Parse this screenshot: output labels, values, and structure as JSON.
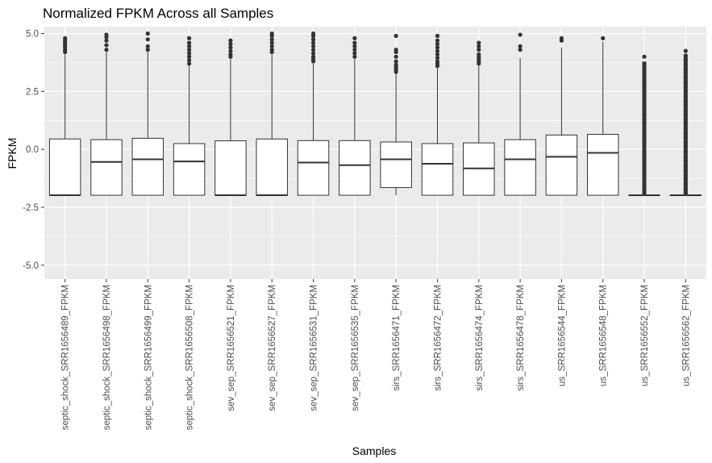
{
  "chart_data": {
    "type": "boxplot",
    "title": "Normalized FPKM Across all Samples",
    "xlabel": "Samples",
    "ylabel": "FPKM",
    "ylim": [
      -5.6,
      5.3
    ],
    "yticks": [
      -5.0,
      -2.5,
      0.0,
      2.5,
      5.0
    ],
    "ytick_labels": [
      "-5.0",
      "-2.5",
      "0.0",
      "2.5",
      "5.0"
    ],
    "grid": true,
    "legend": "none",
    "colors": {
      "panel": "#ebebeb",
      "grid": "#ffffff",
      "box_fill": "#ffffff",
      "box_stroke": "#333333",
      "outlier": "#333333"
    },
    "categories": [
      "septic_shock_SRR1656489_FPKM",
      "septic_shock_SRR1656498_FPKM",
      "septic_shock_SRR1656499_FPKM",
      "septic_shock_SRR1656508_FPKM",
      "sev_sep_SRR1656521_FPKM",
      "sev_sep_SRR1656527_FPKM",
      "sev_sep_SRR1656531_FPKM",
      "sev_sep_SRR1656535_FPKM",
      "sirs_SRR1656471_FPKM",
      "sirs_SRR1656472_FPKM",
      "sirs_SRR1656474_FPKM",
      "sirs_SRR1656478_FPKM",
      "us_SRR1656544_FPKM",
      "us_SRR1656548_FPKM",
      "us_SRR1656552_FPKM",
      "us_SRR1656562_FPKM"
    ],
    "boxes": [
      {
        "q1": -1.98,
        "median": -1.98,
        "q3": 0.45,
        "whisker_low": -1.98,
        "whisker_high": 4.1,
        "outliers": [
          4.2,
          4.3,
          4.4,
          4.5,
          4.6,
          4.7,
          4.8
        ]
      },
      {
        "q1": -1.98,
        "median": -0.54,
        "q3": 0.42,
        "whisker_low": -1.98,
        "whisker_high": 4.2,
        "outliers": [
          4.3,
          4.5,
          4.7,
          4.85,
          4.95
        ]
      },
      {
        "q1": -1.98,
        "median": -0.43,
        "q3": 0.48,
        "whisker_low": -1.98,
        "whisker_high": 4.2,
        "outliers": [
          4.3,
          4.45,
          4.75,
          5.0
        ]
      },
      {
        "q1": -1.98,
        "median": -0.52,
        "q3": 0.25,
        "whisker_low": -1.98,
        "whisker_high": 3.6,
        "outliers": [
          3.7,
          3.85,
          4.0,
          4.15,
          4.3,
          4.45,
          4.6,
          4.8
        ]
      },
      {
        "q1": -1.98,
        "median": -1.98,
        "q3": 0.37,
        "whisker_low": -1.98,
        "whisker_high": 3.9,
        "outliers": [
          4.0,
          4.1,
          4.25,
          4.4,
          4.55,
          4.7
        ]
      },
      {
        "q1": -1.98,
        "median": -1.98,
        "q3": 0.45,
        "whisker_low": -1.98,
        "whisker_high": 4.1,
        "outliers": [
          4.2,
          4.3,
          4.45,
          4.6,
          4.75,
          4.9,
          5.0
        ]
      },
      {
        "q1": -1.98,
        "median": -0.57,
        "q3": 0.38,
        "whisker_low": -1.98,
        "whisker_high": 3.7,
        "outliers": [
          3.8,
          3.9,
          4.0,
          4.15,
          4.3,
          4.45,
          4.6,
          4.75,
          4.9,
          5.0
        ]
      },
      {
        "q1": -1.98,
        "median": -0.68,
        "q3": 0.38,
        "whisker_low": -1.98,
        "whisker_high": 3.9,
        "outliers": [
          4.0,
          4.15,
          4.3,
          4.45,
          4.6,
          4.8
        ]
      },
      {
        "q1": -1.65,
        "median": -0.43,
        "q3": 0.32,
        "whisker_low": -1.98,
        "whisker_high": 3.3,
        "outliers": [
          3.35,
          3.45,
          3.55,
          3.65,
          3.8,
          4.0,
          4.2,
          4.3,
          4.9
        ]
      },
      {
        "q1": -1.98,
        "median": -0.62,
        "q3": 0.25,
        "whisker_low": -1.98,
        "whisker_high": 3.5,
        "outliers": [
          3.6,
          3.7,
          3.8,
          3.95,
          4.1,
          4.25,
          4.4,
          4.55,
          4.7,
          4.9
        ]
      },
      {
        "q1": -1.98,
        "median": -0.82,
        "q3": 0.28,
        "whisker_low": -1.98,
        "whisker_high": 3.6,
        "outliers": [
          3.7,
          3.8,
          3.9,
          4.0,
          4.1,
          4.3,
          4.45,
          4.6
        ]
      },
      {
        "q1": -1.98,
        "median": -0.43,
        "q3": 0.42,
        "whisker_low": -1.98,
        "whisker_high": 3.95,
        "outliers": [
          4.3,
          4.45,
          4.95
        ]
      },
      {
        "q1": -1.98,
        "median": -0.32,
        "q3": 0.62,
        "whisker_low": -1.98,
        "whisker_high": 4.4,
        "outliers": [
          4.7,
          4.8
        ]
      },
      {
        "q1": -1.98,
        "median": -0.15,
        "q3": 0.65,
        "whisker_low": -1.98,
        "whisker_high": 4.65,
        "outliers": [
          4.8
        ]
      },
      {
        "q1": -1.98,
        "median": -1.98,
        "q3": -1.98,
        "whisker_low": -1.98,
        "whisker_high": -1.98,
        "outliers": [
          -1.9,
          -1.7,
          -1.5,
          -1.3,
          -1.1,
          -0.9,
          -0.7,
          -0.5,
          -0.3,
          -0.1,
          0.1,
          0.3,
          0.5,
          0.7,
          0.9,
          1.1,
          1.3,
          1.5,
          1.7,
          1.9,
          2.1,
          2.3,
          2.5,
          2.7,
          2.85,
          3.1,
          3.4,
          3.7,
          4.0
        ]
      },
      {
        "q1": -1.98,
        "median": -1.98,
        "q3": -1.98,
        "whisker_low": -1.98,
        "whisker_high": -1.98,
        "outliers": [
          -1.9,
          -1.7,
          -1.5,
          -1.3,
          -1.1,
          -0.9,
          -0.7,
          -0.5,
          -0.3,
          -0.1,
          0.1,
          0.3,
          0.5,
          0.7,
          0.9,
          1.1,
          1.3,
          1.5,
          1.7,
          1.9,
          2.1,
          2.3,
          2.5,
          2.7,
          2.9,
          3.1,
          3.3,
          3.5,
          3.65,
          3.85,
          4.05,
          4.25
        ]
      }
    ]
  }
}
